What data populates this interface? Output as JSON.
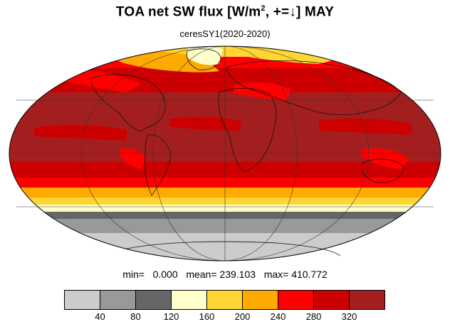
{
  "title": {
    "prefix": "TOA net SW flux [W/m",
    "superscript": "2",
    "suffix": ", +=↓]  MAY"
  },
  "subtitle": "ceresSY1(2020-2020)",
  "stats": {
    "min_label": "min=",
    "min_value": "0.000",
    "mean_label": "mean=",
    "mean_value": "239.103",
    "max_label": "max=",
    "max_value": "410.772"
  },
  "map": {
    "projection": "mollweide",
    "graticule": "30-degree lines",
    "coastlines": true
  },
  "colorbar": {
    "colors": [
      "#cccccc",
      "#999999",
      "#666666",
      "#ffffcc",
      "#ffd633",
      "#ffaa00",
      "#ff0000",
      "#cc0000",
      "#a31f1f"
    ],
    "tick_labels": [
      "40",
      "80",
      "120",
      "160",
      "200",
      "240",
      "280",
      "320"
    ],
    "levels": [
      40,
      80,
      120,
      160,
      200,
      240,
      280,
      320
    ]
  }
}
